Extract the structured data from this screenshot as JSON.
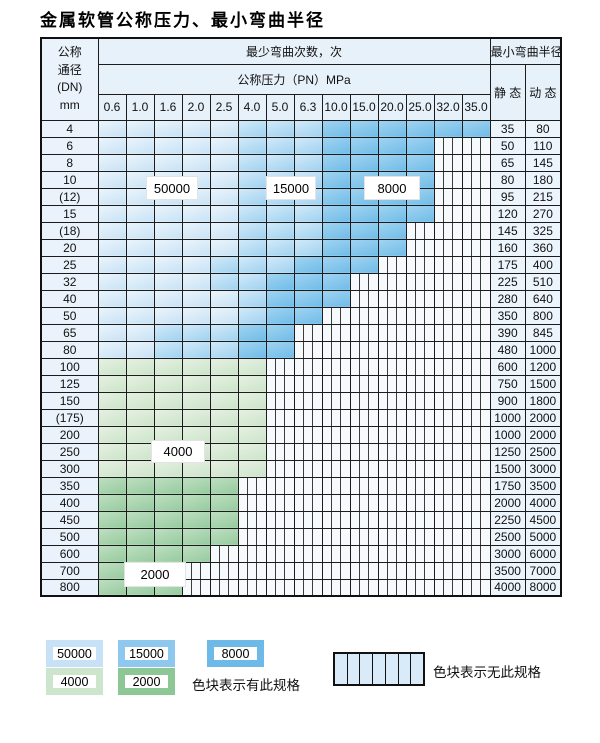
{
  "title": "金属软管公称压力、最小弯曲半径",
  "table": {
    "dn_header_lines": [
      "公称",
      "通径",
      "(DN)",
      "mm"
    ],
    "cycles_header": "最少弯曲次数，次",
    "radius_header": "最小弯曲半径",
    "pressure_header": "公称压力（PN）MPa",
    "static_label": "静 态",
    "dynamic_label": "动 态",
    "pressure_columns": [
      "0.6",
      "1.0",
      "1.6",
      "2.0",
      "2.5",
      "4.0",
      "5.0",
      "6.3",
      "10.0",
      "15.0",
      "20.0",
      "25.0",
      "32.0",
      "35.0"
    ],
    "rows": [
      {
        "dn": "4",
        "static": "35",
        "dynamic": "80",
        "zones": "AAAAABBBCCCCCC"
      },
      {
        "dn": "6",
        "static": "50",
        "dynamic": "110",
        "zones": "AAAAABBBCCCCNN"
      },
      {
        "dn": "8",
        "static": "65",
        "dynamic": "145",
        "zones": "AAAAABBBCCCCNN"
      },
      {
        "dn": "10",
        "static": "80",
        "dynamic": "180",
        "zones": "AAAAABBBCCCCNN"
      },
      {
        "dn": "(12)",
        "static": "95",
        "dynamic": "215",
        "zones": "AAAAABBBCCCCNN"
      },
      {
        "dn": "15",
        "static": "120",
        "dynamic": "270",
        "zones": "AAAAABBBCCCCNN"
      },
      {
        "dn": "(18)",
        "static": "145",
        "dynamic": "325",
        "zones": "AAAAABBBCCCNNN"
      },
      {
        "dn": "20",
        "static": "160",
        "dynamic": "360",
        "zones": "AAAAABBBCCCNNN"
      },
      {
        "dn": "25",
        "static": "175",
        "dynamic": "400",
        "zones": "AAAABBBCCCNNNN"
      },
      {
        "dn": "32",
        "static": "225",
        "dynamic": "510",
        "zones": "AAAABBCCCNNNNN"
      },
      {
        "dn": "40",
        "static": "280",
        "dynamic": "640",
        "zones": "AAAAABCCCNNNNN"
      },
      {
        "dn": "50",
        "static": "350",
        "dynamic": "800",
        "zones": "AAAAABCCNNNNNN"
      },
      {
        "dn": "65",
        "static": "390",
        "dynamic": "845",
        "zones": "AABBBCCNNNNNNN"
      },
      {
        "dn": "80",
        "static": "480",
        "dynamic": "1000",
        "zones": "AABBBCCNNNNNNN"
      },
      {
        "dn": "100",
        "static": "600",
        "dynamic": "1200",
        "zones": "DDDDDDNNNNNNNN"
      },
      {
        "dn": "125",
        "static": "750",
        "dynamic": "1500",
        "zones": "DDDDDDNNNNNNNN"
      },
      {
        "dn": "150",
        "static": "900",
        "dynamic": "1800",
        "zones": "DDDDDDNNNNNNNN"
      },
      {
        "dn": "(175)",
        "static": "1000",
        "dynamic": "2000",
        "zones": "DDDDDDNNNNNNNN"
      },
      {
        "dn": "200",
        "static": "1000",
        "dynamic": "2000",
        "zones": "DDDDDDNNNNNNNN"
      },
      {
        "dn": "250",
        "static": "1250",
        "dynamic": "2500",
        "zones": "DDDDDDNNNNNNNN"
      },
      {
        "dn": "300",
        "static": "1500",
        "dynamic": "3000",
        "zones": "DDDDDDNNNNNNNN"
      },
      {
        "dn": "350",
        "static": "1750",
        "dynamic": "3500",
        "zones": "EEEEENNNNNNNNN"
      },
      {
        "dn": "400",
        "static": "2000",
        "dynamic": "4000",
        "zones": "EEEEENNNNNNNNN"
      },
      {
        "dn": "450",
        "static": "2250",
        "dynamic": "4500",
        "zones": "EEEEENNNNNNNNN"
      },
      {
        "dn": "500",
        "static": "2500",
        "dynamic": "5000",
        "zones": "EEEEENNNNNNNNN"
      },
      {
        "dn": "600",
        "static": "3000",
        "dynamic": "6000",
        "zones": "EEEENNNNNNNNNN"
      },
      {
        "dn": "700",
        "static": "3500",
        "dynamic": "7000",
        "zones": "EEENNNNNNNNNNN"
      },
      {
        "dn": "800",
        "static": "4000",
        "dynamic": "8000",
        "zones": "EEENNNNNNNNNNN"
      }
    ]
  },
  "zone_overlay_labels": {
    "blue_50000": "50000",
    "blue_15000": "15000",
    "blue_8000": "8000",
    "green_4000": "4000",
    "green_2000": "2000"
  },
  "legend": {
    "swatches": [
      {
        "value": "50000",
        "color": "#c7e2f6"
      },
      {
        "value": "15000",
        "color": "#8fc8ee"
      },
      {
        "value": "8000",
        "color": "#6db9e8"
      },
      {
        "value": "4000",
        "color": "#cde5cc"
      },
      {
        "value": "2000",
        "color": "#8dc795"
      }
    ],
    "has_spec_text": "色块表示有此规格",
    "no_spec_text": "色块表示无此规格"
  },
  "colors": {
    "zone_50000": "#cfe6f7",
    "zone_15000": "#a9d5f0",
    "zone_8000": "#7cc2ea",
    "zone_4000": "#d4e8d2",
    "zone_2000": "#9fd0a6",
    "header_bg": "#e7f1fa",
    "dn_col_bg": "#eaf3fb",
    "value_col_bg": "#edf5fc",
    "grid_line": "#1c1c1c"
  }
}
